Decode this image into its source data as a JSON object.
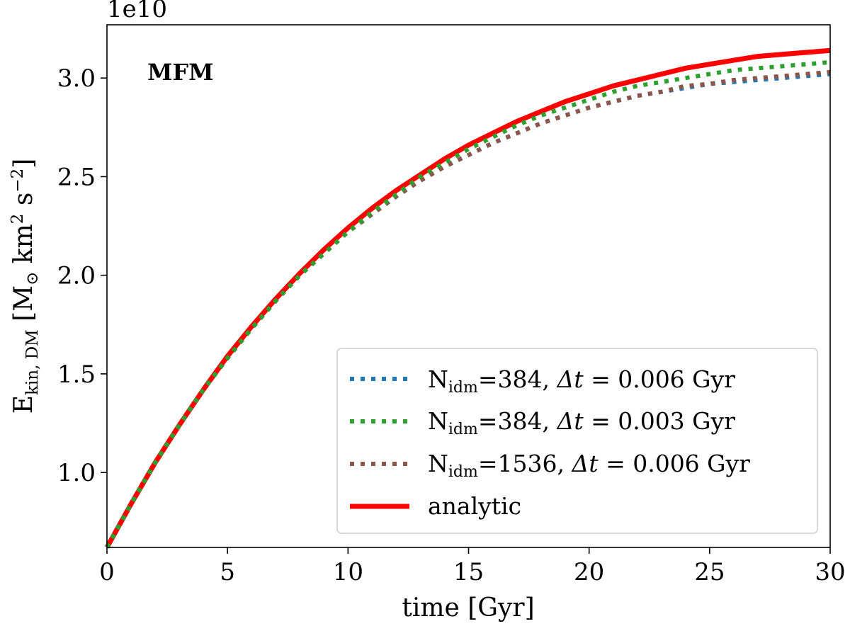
{
  "chart_data": {
    "type": "line",
    "title": "",
    "panel_label": "MFM",
    "xlabel": "time [Gyr]",
    "ylabel": {
      "base": "E",
      "sub": "kin, DM",
      "unit_open": " [M",
      "unit_sun": "⊙",
      "unit_km": " km",
      "unit_km_exp": "2",
      "unit_s": " s",
      "unit_s_exp": "−2",
      "unit_close": "]"
    },
    "offset_label": "1e10",
    "xlim": [
      0,
      30
    ],
    "ylim": [
      0.62,
      3.27
    ],
    "xticks": [
      0,
      5,
      10,
      15,
      20,
      25,
      30
    ],
    "xtick_labels": [
      "0",
      "5",
      "10",
      "15",
      "20",
      "25",
      "30"
    ],
    "yticks": [
      1.0,
      1.5,
      2.0,
      2.5,
      3.0
    ],
    "ytick_labels": [
      "1.0",
      "1.5",
      "2.0",
      "2.5",
      "3.0"
    ],
    "grid": false,
    "legend_position": "lower-right",
    "series": [
      {
        "name": "N_idm=384, Δt = 0.006 Gyr",
        "legend_parts": {
          "n": "N",
          "sub": "idm",
          "val": "=384, ",
          "delta": "Δt",
          "rest": " = 0.006 Gyr"
        },
        "style": "dotted",
        "color": "#1f77b4",
        "x": [
          0,
          1,
          2,
          3,
          4,
          5,
          6,
          7,
          8,
          9,
          10,
          11,
          12,
          13,
          14,
          15,
          16,
          17,
          18,
          19,
          20,
          21,
          22,
          23,
          24,
          25,
          26,
          27,
          28,
          29,
          30
        ],
        "y": [
          0.62,
          0.84,
          1.05,
          1.24,
          1.42,
          1.58,
          1.73,
          1.87,
          2.0,
          2.11,
          2.22,
          2.31,
          2.4,
          2.48,
          2.55,
          2.61,
          2.67,
          2.72,
          2.77,
          2.81,
          2.85,
          2.88,
          2.91,
          2.93,
          2.95,
          2.97,
          2.98,
          2.99,
          3.0,
          3.01,
          3.02
        ]
      },
      {
        "name": "N_idm=384, Δt = 0.003 Gyr",
        "legend_parts": {
          "n": "N",
          "sub": "idm",
          "val": "=384, ",
          "delta": "Δt",
          "rest": " = 0.003 Gyr"
        },
        "style": "dotted",
        "color": "#2ca02c",
        "x": [
          0,
          1,
          2,
          3,
          4,
          5,
          6,
          7,
          8,
          9,
          10,
          11,
          12,
          13,
          14,
          15,
          16,
          17,
          18,
          19,
          20,
          21,
          22,
          23,
          24,
          25,
          26,
          27,
          28,
          29,
          30
        ],
        "y": [
          0.62,
          0.84,
          1.05,
          1.24,
          1.42,
          1.58,
          1.73,
          1.87,
          2.0,
          2.11,
          2.22,
          2.32,
          2.41,
          2.5,
          2.57,
          2.64,
          2.7,
          2.76,
          2.81,
          2.85,
          2.89,
          2.93,
          2.96,
          2.98,
          3.0,
          3.02,
          3.04,
          3.05,
          3.06,
          3.07,
          3.08
        ]
      },
      {
        "name": "N_idm=1536, Δt = 0.006 Gyr",
        "legend_parts": {
          "n": "N",
          "sub": "idm",
          "val": "=1536, ",
          "delta": "Δt",
          "rest": " = 0.006 Gyr"
        },
        "style": "dotted",
        "color": "#8c564b",
        "x": [
          0,
          1,
          2,
          3,
          4,
          5,
          6,
          7,
          8,
          9,
          10,
          11,
          12,
          13,
          14,
          15,
          16,
          17,
          18,
          19,
          20,
          21,
          22,
          23,
          24,
          25,
          26,
          27,
          28,
          29,
          30
        ],
        "y": [
          0.62,
          0.84,
          1.05,
          1.24,
          1.42,
          1.58,
          1.73,
          1.87,
          2.0,
          2.11,
          2.22,
          2.31,
          2.4,
          2.48,
          2.55,
          2.61,
          2.67,
          2.72,
          2.77,
          2.81,
          2.85,
          2.88,
          2.91,
          2.93,
          2.96,
          2.97,
          2.99,
          3.0,
          3.01,
          3.02,
          3.03
        ]
      },
      {
        "name": "analytic",
        "legend_parts": {
          "n": "analytic",
          "sub": "",
          "val": "",
          "delta": "",
          "rest": ""
        },
        "style": "solid",
        "color": "#ff0000",
        "x": [
          0,
          1,
          2,
          3,
          4,
          5,
          6,
          7,
          8,
          9,
          10,
          11,
          12,
          13,
          14,
          15,
          16,
          17,
          18,
          19,
          20,
          21,
          22,
          23,
          24,
          25,
          26,
          27,
          28,
          29,
          30
        ],
        "y": [
          0.62,
          0.84,
          1.05,
          1.24,
          1.42,
          1.59,
          1.74,
          1.88,
          2.01,
          2.13,
          2.24,
          2.34,
          2.43,
          2.51,
          2.59,
          2.66,
          2.72,
          2.78,
          2.83,
          2.88,
          2.92,
          2.96,
          2.99,
          3.02,
          3.05,
          3.07,
          3.09,
          3.11,
          3.12,
          3.13,
          3.14
        ]
      }
    ]
  }
}
